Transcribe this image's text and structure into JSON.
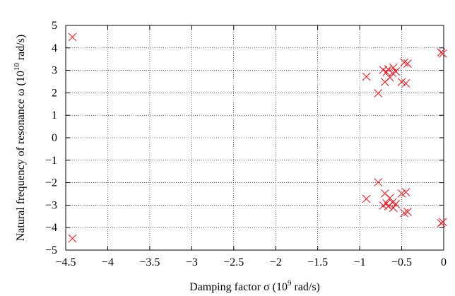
{
  "chart_data": {
    "type": "scatter",
    "title": "",
    "xlabel": {
      "prefix": "Damping factor ",
      "symbol": "σ",
      "unit_open": " (10",
      "unit_exp": "9",
      "unit_close": " rad/s)"
    },
    "ylabel": {
      "prefix": "Natural frequency of resonance  ",
      "symbol": "ω",
      "unit_open": " (10",
      "unit_exp": "10",
      "unit_close": " rad/s)"
    },
    "xlim": [
      -4.5,
      0
    ],
    "ylim": [
      -5,
      5
    ],
    "x_ticks": [
      -4.5,
      -4,
      -3.5,
      -3,
      -2.5,
      -2,
      -1.5,
      -1,
      -0.5,
      0
    ],
    "x_tick_labels": [
      "−4.5",
      "−4",
      "−3.5",
      "−3",
      "−2.5",
      "−2",
      "−1.5",
      "−1",
      "−0.5",
      "0"
    ],
    "y_ticks": [
      -5,
      -4,
      -3,
      -2,
      -1,
      0,
      1,
      2,
      3,
      4,
      5
    ],
    "y_tick_labels": [
      "−5",
      "−4",
      "−3",
      "−2",
      "−1",
      "0",
      "1",
      "2",
      "3",
      "4",
      "5"
    ],
    "grid": true,
    "marker": "x",
    "marker_color": "#e8202a",
    "series": [
      {
        "x": [
          -4.42,
          -4.42,
          -0.92,
          -0.92,
          -0.78,
          -0.78,
          -0.72,
          -0.72,
          -0.68,
          -0.68,
          -0.7,
          -0.7,
          -0.66,
          -0.66,
          -0.64,
          -0.64,
          -0.61,
          -0.61,
          -0.6,
          -0.6,
          -0.57,
          -0.57,
          -0.5,
          -0.5,
          -0.47,
          -0.47,
          -0.45,
          -0.45,
          -0.43,
          -0.43,
          -0.03,
          -0.03,
          -0.01,
          -0.01
        ],
        "y": [
          4.48,
          -4.48,
          2.72,
          -2.72,
          1.98,
          -1.98,
          3.02,
          -3.02,
          2.92,
          -2.92,
          2.48,
          -2.48,
          3.05,
          -3.05,
          2.68,
          -2.68,
          2.88,
          -2.88,
          3.12,
          -3.12,
          2.95,
          -2.95,
          2.48,
          -2.48,
          3.35,
          -3.35,
          2.42,
          -2.42,
          3.3,
          -3.3,
          3.8,
          -3.8,
          3.75,
          -3.75
        ]
      }
    ]
  }
}
